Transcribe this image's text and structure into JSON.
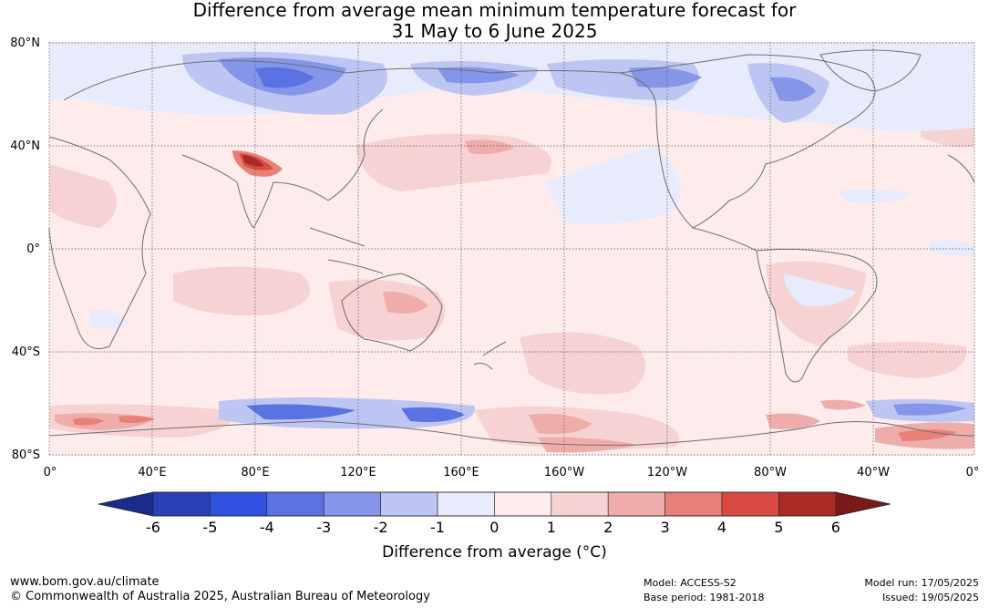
{
  "title": {
    "line1": "Difference from average mean minimum temperature forecast for",
    "line2": "31 May to 6 June 2025"
  },
  "map": {
    "projection": "equirectangular, Pacific-centred",
    "lat_labels": [
      "80°N",
      "40°N",
      "0°",
      "40°S",
      "80°S"
    ],
    "lon_labels": [
      "0°",
      "40°E",
      "80°E",
      "120°E",
      "160°E",
      "160°W",
      "120°W",
      "80°W",
      "40°W",
      "0°"
    ],
    "lat_values": [
      80,
      40,
      0,
      -40,
      -80
    ],
    "lon_values": [
      0,
      40,
      80,
      120,
      160,
      200,
      240,
      280,
      320,
      360
    ],
    "coastline_color": "#6e6e6e",
    "grid_color": "#555555"
  },
  "legend": {
    "ticks": [
      "-6",
      "-5",
      "-4",
      "-3",
      "-2",
      "-1",
      "0",
      "1",
      "2",
      "3",
      "4",
      "5",
      "6"
    ],
    "colors": [
      "#1d2b8a",
      "#2a42b8",
      "#3050e0",
      "#5a72e2",
      "#8596ea",
      "#bdc6f2",
      "#e8ebfb",
      "#fdeceb",
      "#f6d2d2",
      "#eeadab",
      "#e88078",
      "#d84a42",
      "#aa2a26",
      "#7a1a18"
    ],
    "title": "Difference from average (°C)"
  },
  "footer": {
    "url": "www.bom.gov.au/climate",
    "copyright": "© Commonwealth of Australia 2025, Australian Bureau of Meteorology",
    "model": "Model: ACCESS-S2",
    "base_period": "Base period: 1981-2018",
    "model_run": "Model run: 17/05/2025",
    "issued": "Issued: 19/05/2025"
  }
}
